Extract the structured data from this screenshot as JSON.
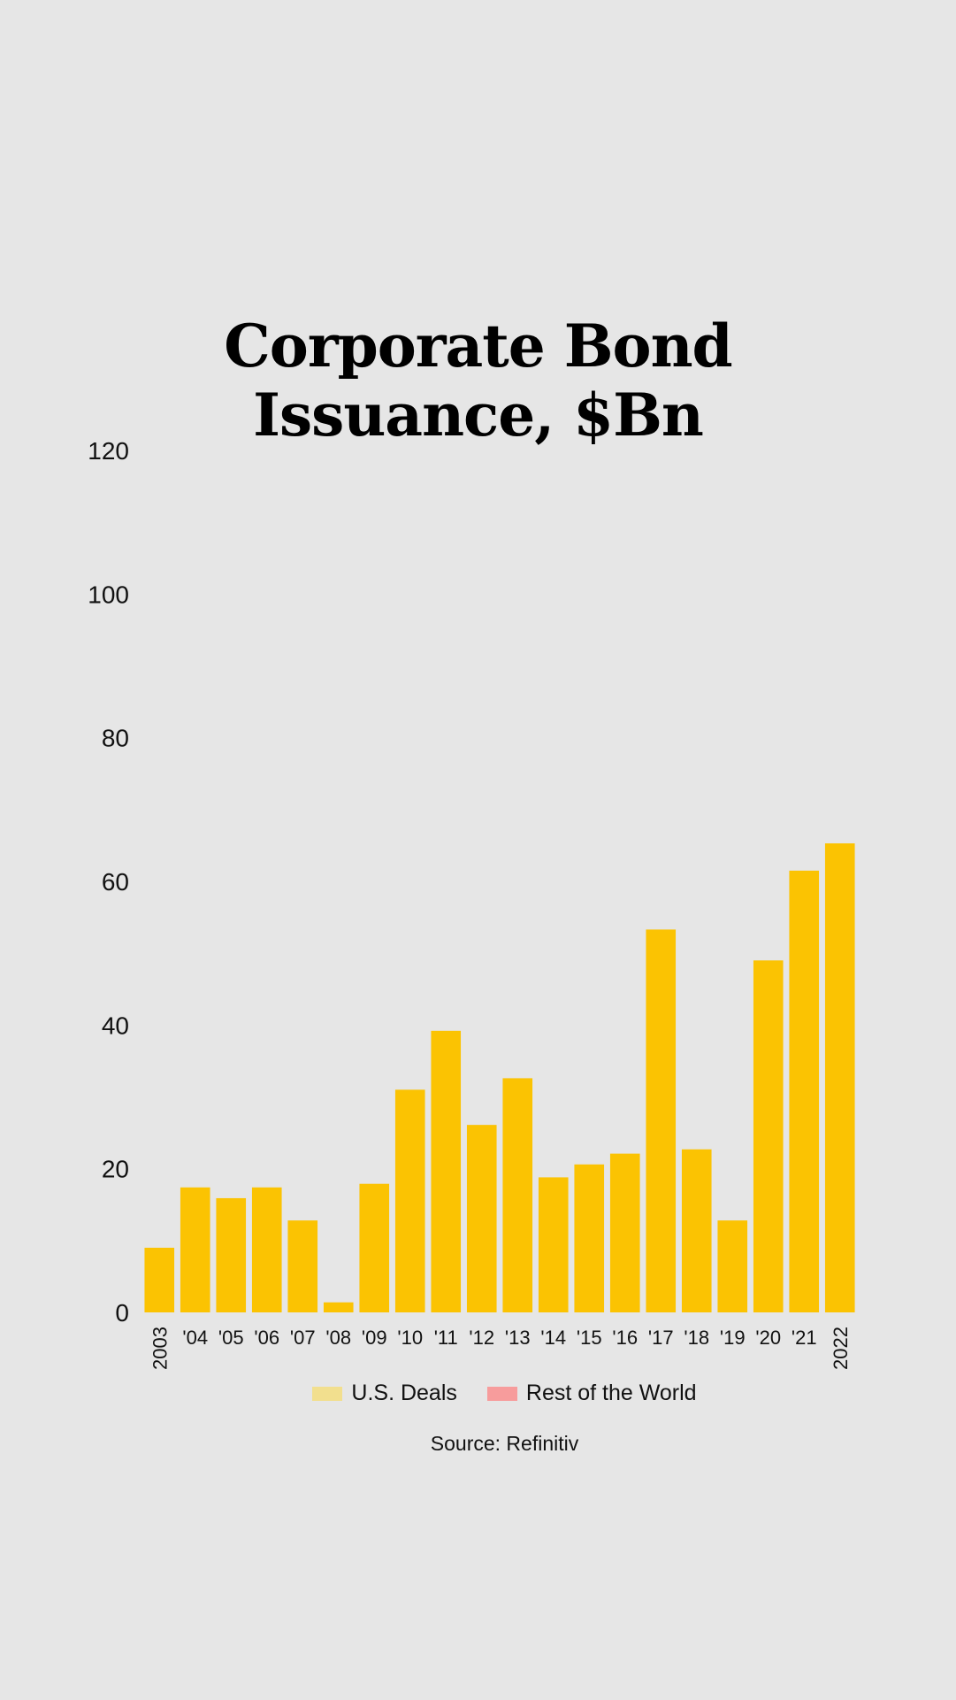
{
  "chart_data": {
    "type": "bar",
    "title": "Corporate Bond Issuance, $Bn",
    "xlabel": "",
    "ylabel": "",
    "ylim": [
      0,
      120
    ],
    "yticks": [
      0,
      20,
      40,
      60,
      80,
      100,
      120
    ],
    "grid": false,
    "legend_position": "bottom",
    "categories": [
      "2003",
      "'04",
      "'05",
      "'06",
      "'07",
      "'08",
      "'09",
      "'10",
      "'11",
      "'12",
      "'13",
      "'14",
      "'15",
      "'16",
      "'17",
      "'18",
      "'19",
      "'20",
      "'21",
      "2022"
    ],
    "series": [
      {
        "name": "U.S. Deals",
        "color": "#fbc302",
        "values": [
          9,
          17.4,
          15.9,
          17.4,
          12.8,
          1.4,
          17.9,
          31,
          39.2,
          26.1,
          32.6,
          18.8,
          20.6,
          22.1,
          53.3,
          22.7,
          12.8,
          49,
          61.5,
          65.3
        ]
      }
    ],
    "legend": [
      {
        "label": "U.S. Deals",
        "color": "#f2df8e"
      },
      {
        "label": "Rest of the World",
        "color": "#f79c9c"
      }
    ],
    "source": "Source: Refinitiv"
  }
}
